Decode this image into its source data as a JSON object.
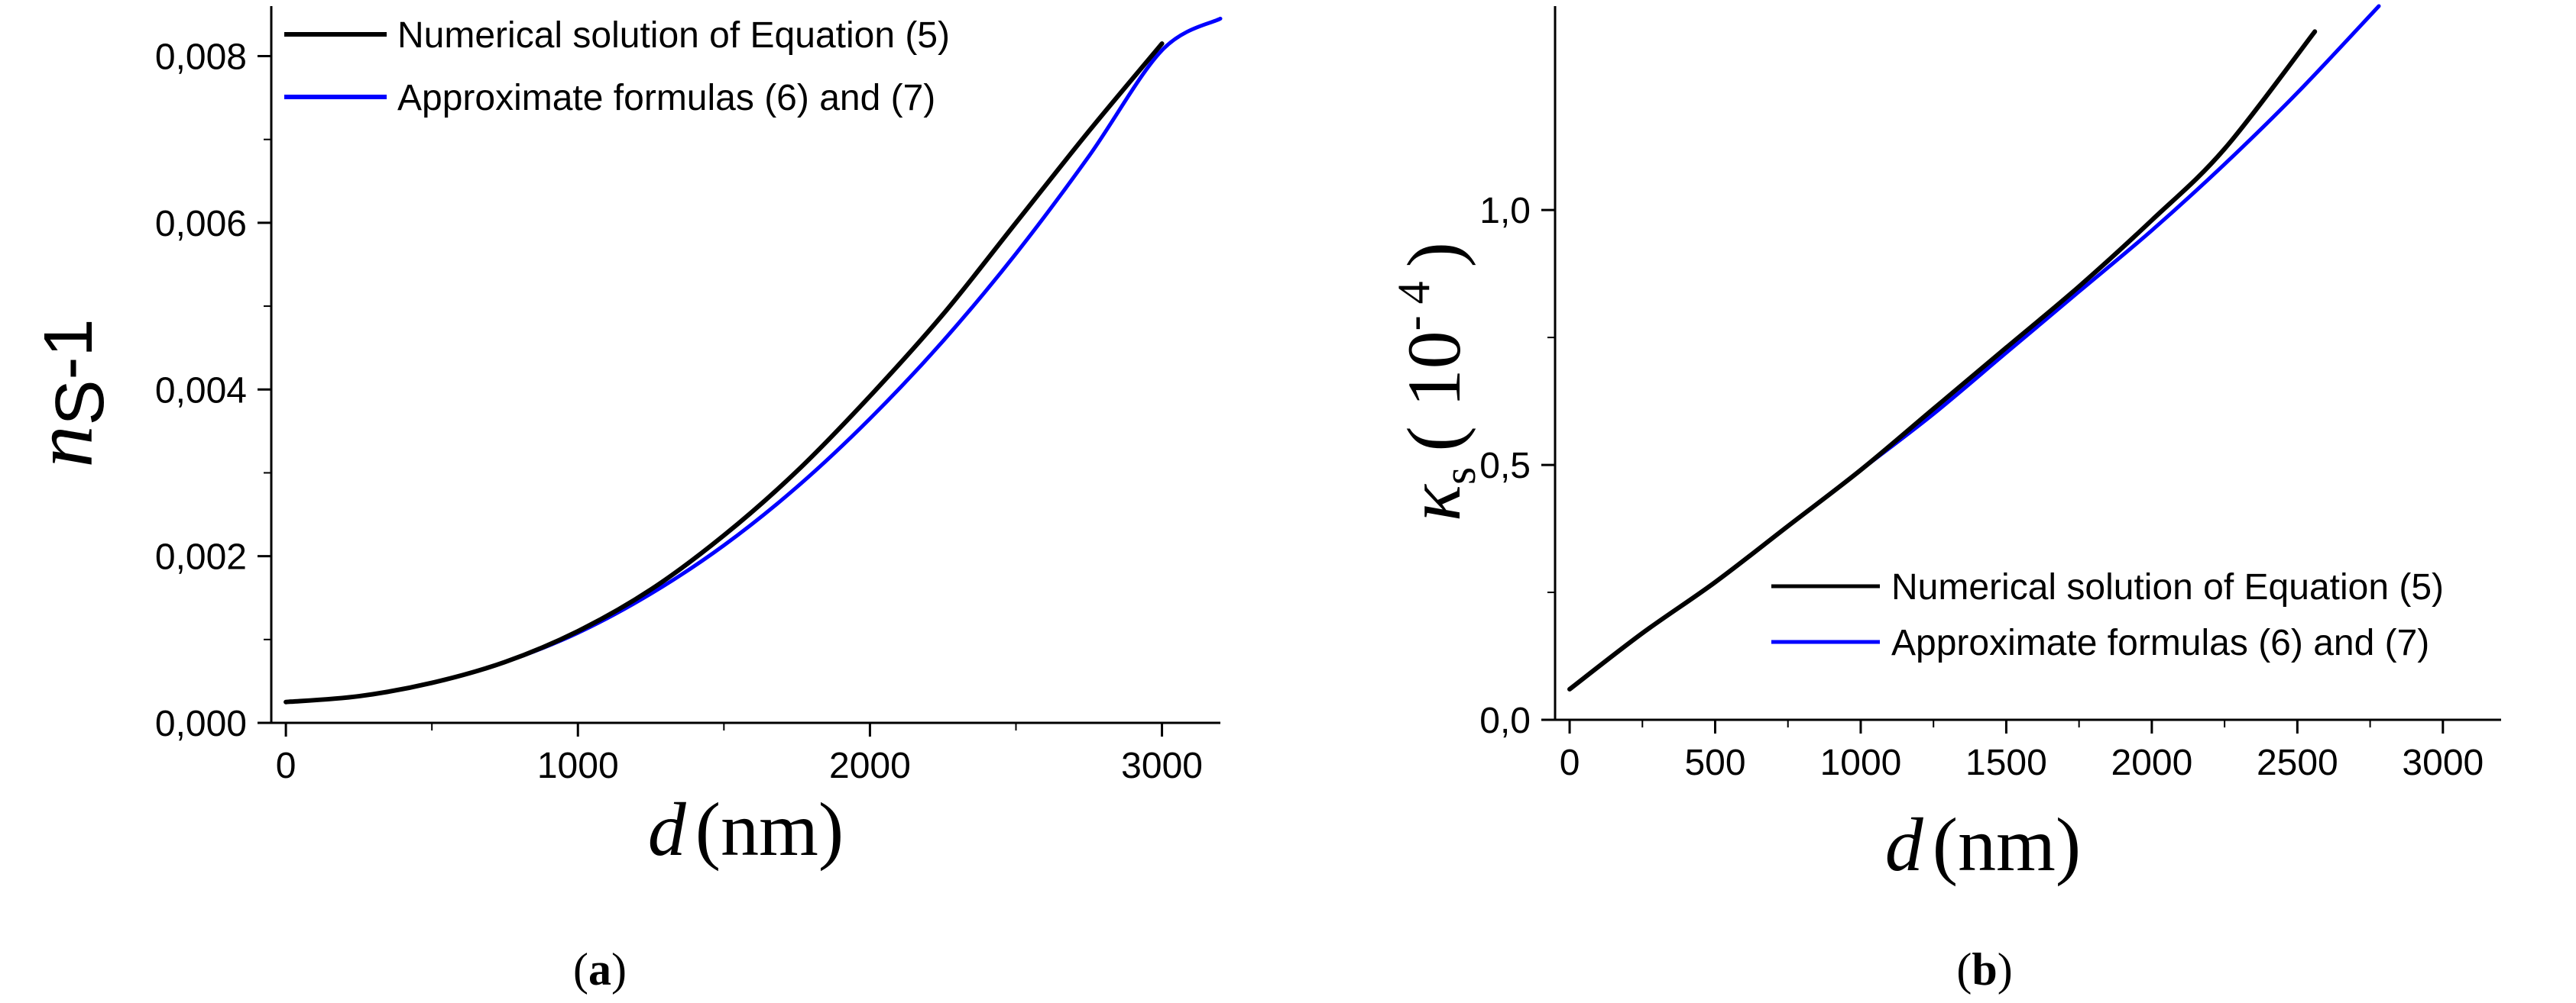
{
  "figure": {
    "panel_a_label": "a",
    "panel_b_label": "b",
    "colors": {
      "numerical": "#000000",
      "approximate": "#0000ff"
    }
  },
  "chart_data": [
    {
      "panel": "a",
      "type": "line",
      "title": "",
      "xlabel_var": "d",
      "xlabel_unit": "(nm)",
      "ylabel_var": "n",
      "ylabel_sub": "S",
      "ylabel_suffix": "-1",
      "xlim": [
        -50,
        3200
      ],
      "ylim": [
        0,
        0.0086
      ],
      "xticks": [
        0,
        1000,
        2000,
        3000
      ],
      "xtick_labels": [
        "0",
        "1000",
        "2000",
        "3000"
      ],
      "yticks": [
        0,
        0.002,
        0.004,
        0.006,
        0.008
      ],
      "ytick_labels": [
        "0,000",
        "0,002",
        "0,004",
        "0,006",
        "0,008"
      ],
      "grid": false,
      "legend_position": "top-left",
      "series": [
        {
          "name": "Numerical solution of Equation (5)",
          "color": "#000000",
          "x": [
            0,
            250,
            500,
            750,
            1000,
            1250,
            1500,
            1750,
            2000,
            2250,
            2500,
            2750,
            3000
          ],
          "y": [
            0.00025,
            0.00032,
            0.00048,
            0.00073,
            0.0011,
            0.0016,
            0.00225,
            0.00302,
            0.00392,
            0.0049,
            0.006,
            0.0071,
            0.00815
          ]
        },
        {
          "name": "Approximate formulas (6) and (7)",
          "color": "#0000ff",
          "x": [
            0,
            250,
            500,
            750,
            1000,
            1250,
            1500,
            1750,
            2000,
            2250,
            2500,
            2750,
            3000,
            3200
          ],
          "y": [
            0.00025,
            0.00032,
            0.00048,
            0.00073,
            0.00108,
            0.00155,
            0.00213,
            0.00283,
            0.00365,
            0.00458,
            0.00563,
            0.0068,
            0.00807,
            0.00845
          ]
        }
      ]
    },
    {
      "panel": "b",
      "type": "line",
      "title": "",
      "xlabel_var": "d",
      "xlabel_unit": "(nm)",
      "ylabel_var": "κ",
      "ylabel_sub": "s",
      "ylabel_suffix": "( 10",
      "ylabel_exp": "- 4",
      "ylabel_close": ")",
      "xlim": [
        -50,
        3200
      ],
      "ylim": [
        0,
        1.4
      ],
      "xticks": [
        0,
        500,
        1000,
        1500,
        2000,
        2500,
        3000
      ],
      "xtick_labels": [
        "0",
        "500",
        "1000",
        "1500",
        "2000",
        "2500",
        "3000"
      ],
      "yticks": [
        0,
        0.5,
        1.0
      ],
      "ytick_labels": [
        "0,0",
        "0,5",
        "1,0"
      ],
      "grid": false,
      "legend_position": "bottom-right",
      "series": [
        {
          "name": "Numerical solution of Equation (5)",
          "color": "#000000",
          "x": [
            0,
            250,
            500,
            750,
            1000,
            1250,
            1500,
            1750,
            2000,
            2250,
            2560
          ],
          "y": [
            0.06,
            0.17,
            0.27,
            0.38,
            0.49,
            0.61,
            0.73,
            0.85,
            0.98,
            1.12,
            1.35
          ]
        },
        {
          "name": "Approximate formulas (6) and (7)",
          "color": "#0000ff",
          "x": [
            0,
            250,
            500,
            750,
            1000,
            1250,
            1500,
            1750,
            2000,
            2250,
            2500,
            2780
          ],
          "y": [
            0.06,
            0.17,
            0.27,
            0.38,
            0.49,
            0.6,
            0.72,
            0.84,
            0.96,
            1.09,
            1.23,
            1.4
          ]
        }
      ]
    }
  ]
}
